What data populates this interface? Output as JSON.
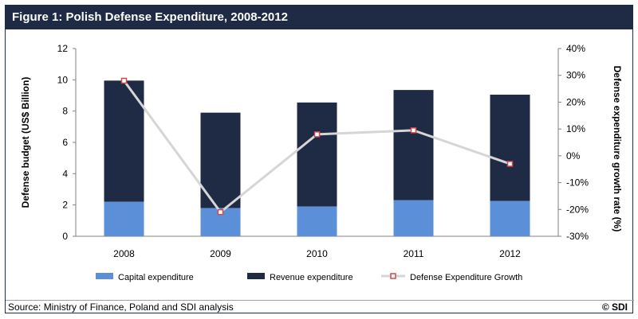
{
  "title": "Figure 1: Polish Defense Expenditure, 2008-2012",
  "source": "Source: Ministry of Finance, Poland and SDI analysis",
  "copyright": "© SDI",
  "colors": {
    "capital": "#5b8fd8",
    "revenue": "#1f2a44",
    "growth_line": "#d6d6d6",
    "growth_marker": "#d24a4a",
    "title_bar": "#1f2a44"
  },
  "chart_data": {
    "type": "bar",
    "stacked": true,
    "categories": [
      "2008",
      "2009",
      "2010",
      "2011",
      "2012"
    ],
    "series": [
      {
        "name": "Capital expenditure",
        "axis": "left",
        "values": [
          2.2,
          1.8,
          1.9,
          2.3,
          2.25
        ]
      },
      {
        "name": "Revenue expenditure",
        "axis": "left",
        "values": [
          7.75,
          6.1,
          6.65,
          7.05,
          6.8
        ]
      },
      {
        "name": "Defense Expenditure Growth",
        "type": "line",
        "axis": "right",
        "values": [
          28,
          -21,
          8,
          9.5,
          -3
        ]
      }
    ],
    "ylabel": "Defense budget (US$ Billion)",
    "ylim": [
      0,
      12
    ],
    "yticks": [
      "0",
      "2",
      "4",
      "6",
      "8",
      "10",
      "12"
    ],
    "y2label": "Defense expenditure growth rate (%)",
    "y2lim": [
      -30,
      40
    ],
    "y2ticks": [
      "-30%",
      "-20%",
      "-10%",
      "0%",
      "10%",
      "20%",
      "30%",
      "40%"
    ],
    "legend_position": "bottom",
    "grid": false
  }
}
